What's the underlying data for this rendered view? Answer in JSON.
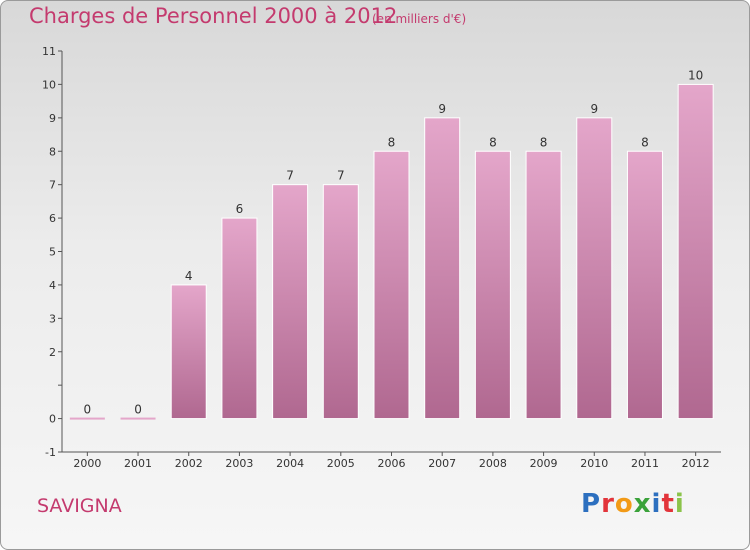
{
  "header": {
    "title": "Charges de Personnel 2000 à 2012",
    "subtitle": "(en milliers d'€)"
  },
  "footer": {
    "commune": "SAVIGNA",
    "logo_letters": [
      "P",
      "r",
      "o",
      "x",
      "i",
      "t",
      "i"
    ],
    "logo_colors": [
      "#2c6fbf",
      "#e2343a",
      "#f29a16",
      "#3aa23a",
      "#2c6fbf",
      "#e2343a",
      "#8bc34a"
    ]
  },
  "chart_data": {
    "type": "bar",
    "categories": [
      "2000",
      "2001",
      "2002",
      "2003",
      "2004",
      "2005",
      "2006",
      "2007",
      "2008",
      "2009",
      "2010",
      "2011",
      "2012"
    ],
    "values": [
      0,
      0,
      4,
      6,
      7,
      7,
      8,
      9,
      8,
      8,
      9,
      8,
      10
    ],
    "data_labels": [
      "0",
      "0",
      "4",
      "6",
      "7",
      "7",
      "8",
      "9",
      "8",
      "8",
      "9",
      "8",
      "10"
    ],
    "title": "Charges de Personnel 2000 à 2012",
    "ylim": [
      -1,
      11
    ],
    "yticks": [
      -1,
      0,
      1,
      2,
      3,
      4,
      5,
      6,
      7,
      8,
      9,
      10,
      11
    ],
    "ytick_labels": [
      "-1",
      "0",
      "",
      "2",
      "3",
      "4",
      "5",
      "6",
      "7",
      "8",
      "9",
      "10",
      "11"
    ],
    "grid": false,
    "bar_color_top": "#e4a6ca",
    "bar_color_bottom": "#b06890"
  }
}
